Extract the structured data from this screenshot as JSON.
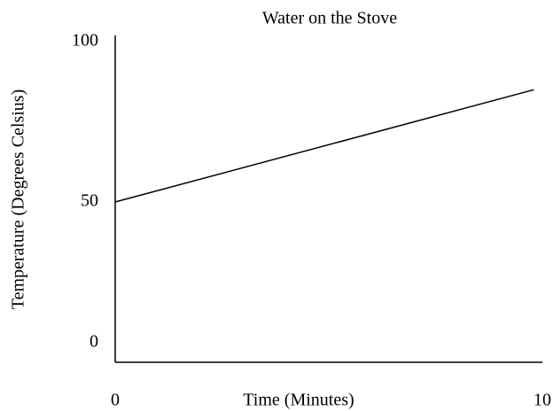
{
  "chart_data": {
    "type": "line",
    "title": "Water on the Stove",
    "x_label": "Time (Minutes)",
    "y_label": "Temperature (Degrees Celsius)",
    "x": [
      0,
      9.8
    ],
    "values": [
      50,
      85
    ],
    "color": "#000000",
    "xlim": [
      0,
      10
    ],
    "xticks": [
      0,
      10
    ],
    "ylim": [
      0,
      100
    ],
    "yticks": [
      0,
      50,
      100
    ],
    "grid": false
  }
}
